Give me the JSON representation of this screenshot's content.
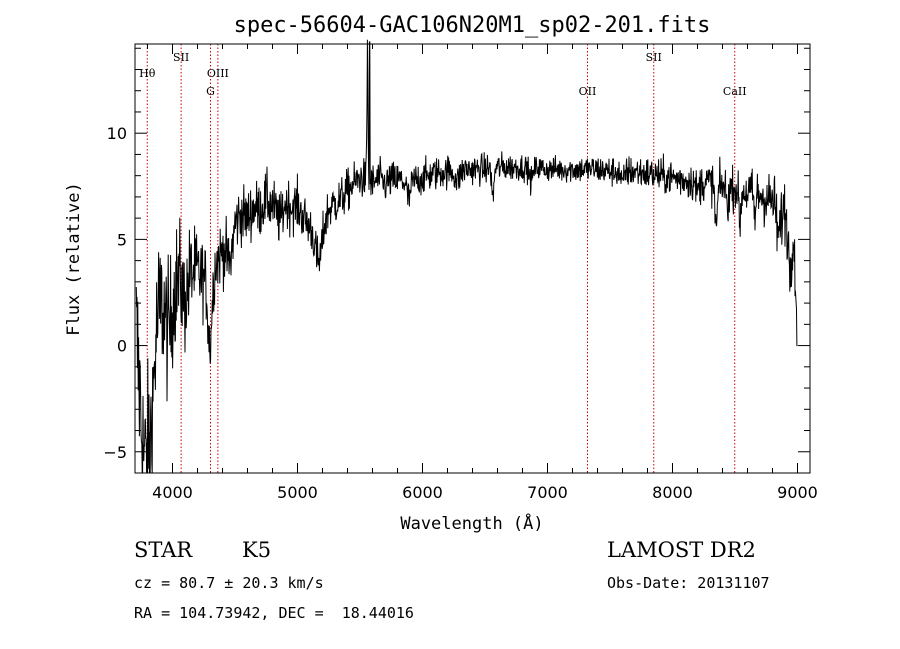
{
  "chart_data": {
    "type": "line",
    "title": "spec-56604-GAC106N20M1_sp02-201.fits",
    "xlabel": "Wavelength (Å)",
    "ylabel": "Flux (relative)",
    "xlim": [
      3700,
      9100
    ],
    "ylim": [
      -6,
      14.2
    ],
    "x_ticks": [
      4000,
      5000,
      6000,
      7000,
      8000,
      9000
    ],
    "y_ticks": [
      -5,
      0,
      5,
      10
    ],
    "grid": false,
    "line_color": "#000000",
    "marker_color": "#cc0000",
    "continuum": [
      [
        3710,
        2.5
      ],
      [
        3750,
        2.4
      ],
      [
        3800,
        1.8
      ],
      [
        3850,
        2.2
      ],
      [
        3900,
        2.0
      ],
      [
        3950,
        2.3
      ],
      [
        4000,
        2.8
      ],
      [
        4050,
        3.2
      ],
      [
        4100,
        3.6
      ],
      [
        4150,
        3.5
      ],
      [
        4200,
        3.4
      ],
      [
        4250,
        3.2
      ],
      [
        4300,
        2.8
      ],
      [
        4350,
        4.0
      ],
      [
        4400,
        4.4
      ],
      [
        4450,
        4.9
      ],
      [
        4500,
        5.8
      ],
      [
        4550,
        6.2
      ],
      [
        4600,
        6.0
      ],
      [
        4650,
        6.5
      ],
      [
        4700,
        6.4
      ],
      [
        4750,
        6.9
      ],
      [
        4800,
        6.6
      ],
      [
        4850,
        6.8
      ],
      [
        4900,
        6.9
      ],
      [
        4950,
        6.5
      ],
      [
        5000,
        6.6
      ],
      [
        5050,
        6.0
      ],
      [
        5100,
        5.6
      ],
      [
        5150,
        5.3
      ],
      [
        5200,
        5.8
      ],
      [
        5250,
        6.4
      ],
      [
        5300,
        6.7
      ],
      [
        5350,
        6.9
      ],
      [
        5400,
        7.3
      ],
      [
        5450,
        7.6
      ],
      [
        5500,
        7.9
      ],
      [
        5550,
        7.8
      ],
      [
        5600,
        7.6
      ],
      [
        5650,
        7.9
      ],
      [
        5700,
        7.6
      ],
      [
        5750,
        7.8
      ],
      [
        5800,
        7.8
      ],
      [
        5900,
        7.7
      ],
      [
        6000,
        7.9
      ],
      [
        6100,
        8.1
      ],
      [
        6200,
        8.2
      ],
      [
        6300,
        8.3
      ],
      [
        6400,
        8.3
      ],
      [
        6500,
        8.3
      ],
      [
        6600,
        8.4
      ],
      [
        6700,
        8.4
      ],
      [
        6800,
        8.4
      ],
      [
        6900,
        8.4
      ],
      [
        7000,
        8.3
      ],
      [
        7100,
        8.3
      ],
      [
        7200,
        8.3
      ],
      [
        7300,
        8.3
      ],
      [
        7400,
        8.3
      ],
      [
        7500,
        8.2
      ],
      [
        7600,
        8.2
      ],
      [
        7700,
        8.2
      ],
      [
        7800,
        8.1
      ],
      [
        7900,
        8.0
      ],
      [
        8000,
        7.9
      ],
      [
        8100,
        7.8
      ],
      [
        8200,
        7.7
      ],
      [
        8300,
        7.7
      ],
      [
        8400,
        7.5
      ],
      [
        8500,
        7.4
      ],
      [
        8600,
        7.2
      ],
      [
        8700,
        7.1
      ],
      [
        8800,
        6.8
      ],
      [
        8900,
        6.4
      ],
      [
        8980,
        6.1
      ]
    ],
    "features": [
      [
        3740,
        -3.0,
        30
      ],
      [
        3775,
        -4.5,
        25
      ],
      [
        3825,
        -5.5,
        30
      ],
      [
        3970,
        -1.8,
        25
      ],
      [
        4100,
        -1.5,
        20
      ],
      [
        4300,
        -2.8,
        15
      ],
      [
        4460,
        -1.2,
        20
      ],
      [
        4860,
        -0.9,
        25
      ],
      [
        5173,
        -1.6,
        25
      ],
      [
        5560,
        6.2,
        4
      ],
      [
        5890,
        -0.8,
        15
      ],
      [
        6280,
        -0.5,
        20
      ],
      [
        6563,
        -1.5,
        8
      ],
      [
        6870,
        -0.6,
        15
      ],
      [
        7600,
        -0.6,
        12
      ],
      [
        8200,
        -0.4,
        15
      ],
      [
        8350,
        -2.0,
        10
      ],
      [
        8440,
        -0.9,
        8
      ],
      [
        8540,
        -1.5,
        8
      ],
      [
        8660,
        -1.1,
        8
      ],
      [
        8850,
        -1.5,
        15
      ],
      [
        8940,
        -2.4,
        15
      ],
      [
        8990,
        -4.3,
        10
      ]
    ],
    "noise": [
      [
        3700,
        3.2
      ],
      [
        4300,
        1.1
      ],
      [
        4800,
        0.9
      ],
      [
        5600,
        0.65
      ],
      [
        7000,
        0.42
      ],
      [
        8500,
        0.7
      ],
      [
        9000,
        1.2
      ]
    ],
    "line_markers": [
      {
        "name": "Hθ",
        "wavelength": 3798,
        "row": 1
      },
      {
        "name": "SII",
        "wavelength": 4069,
        "row": 0
      },
      {
        "name": "OIII",
        "wavelength": 4363,
        "row": 1
      },
      {
        "name": "G",
        "wavelength": 4304,
        "row": 2
      },
      {
        "name": "OII",
        "wavelength": 7320,
        "row": 2
      },
      {
        "name": "SII",
        "wavelength": 7850,
        "row": 0
      },
      {
        "name": "CaII",
        "wavelength": 8498,
        "row": 2
      }
    ]
  },
  "info": {
    "class": "STAR",
    "subclass": "K5",
    "survey": "LAMOST DR2",
    "cz": "cz = 80.7 ± 20.3 km/s",
    "obs_date": "Obs-Date: 20131107",
    "coords": "RA = 104.73942, DEC =  18.44016"
  }
}
